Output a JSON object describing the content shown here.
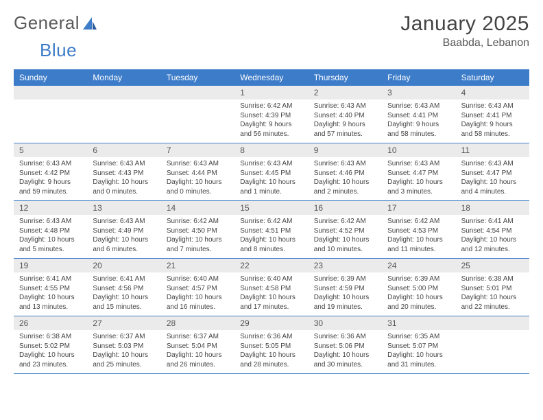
{
  "logo": {
    "text1": "General",
    "text2": "Blue"
  },
  "title": "January 2025",
  "location": "Baabda, Lebanon",
  "weekdays": [
    "Sunday",
    "Monday",
    "Tuesday",
    "Wednesday",
    "Thursday",
    "Friday",
    "Saturday"
  ],
  "colors": {
    "header_bar": "#3d7cc9",
    "daynum_bg": "#ebebeb",
    "text": "#444444",
    "logo_blue": "#3d7cc9"
  },
  "layout": {
    "columns": 7,
    "rows": 5,
    "cell_font_size": 10,
    "weekday_font_size": 12
  },
  "weeks": [
    [
      {
        "n": "",
        "sunrise": "",
        "sunset": "",
        "daylight": ""
      },
      {
        "n": "",
        "sunrise": "",
        "sunset": "",
        "daylight": ""
      },
      {
        "n": "",
        "sunrise": "",
        "sunset": "",
        "daylight": ""
      },
      {
        "n": "1",
        "sunrise": "Sunrise: 6:42 AM",
        "sunset": "Sunset: 4:39 PM",
        "daylight": "Daylight: 9 hours and 56 minutes."
      },
      {
        "n": "2",
        "sunrise": "Sunrise: 6:43 AM",
        "sunset": "Sunset: 4:40 PM",
        "daylight": "Daylight: 9 hours and 57 minutes."
      },
      {
        "n": "3",
        "sunrise": "Sunrise: 6:43 AM",
        "sunset": "Sunset: 4:41 PM",
        "daylight": "Daylight: 9 hours and 58 minutes."
      },
      {
        "n": "4",
        "sunrise": "Sunrise: 6:43 AM",
        "sunset": "Sunset: 4:41 PM",
        "daylight": "Daylight: 9 hours and 58 minutes."
      }
    ],
    [
      {
        "n": "5",
        "sunrise": "Sunrise: 6:43 AM",
        "sunset": "Sunset: 4:42 PM",
        "daylight": "Daylight: 9 hours and 59 minutes."
      },
      {
        "n": "6",
        "sunrise": "Sunrise: 6:43 AM",
        "sunset": "Sunset: 4:43 PM",
        "daylight": "Daylight: 10 hours and 0 minutes."
      },
      {
        "n": "7",
        "sunrise": "Sunrise: 6:43 AM",
        "sunset": "Sunset: 4:44 PM",
        "daylight": "Daylight: 10 hours and 0 minutes."
      },
      {
        "n": "8",
        "sunrise": "Sunrise: 6:43 AM",
        "sunset": "Sunset: 4:45 PM",
        "daylight": "Daylight: 10 hours and 1 minute."
      },
      {
        "n": "9",
        "sunrise": "Sunrise: 6:43 AM",
        "sunset": "Sunset: 4:46 PM",
        "daylight": "Daylight: 10 hours and 2 minutes."
      },
      {
        "n": "10",
        "sunrise": "Sunrise: 6:43 AM",
        "sunset": "Sunset: 4:47 PM",
        "daylight": "Daylight: 10 hours and 3 minutes."
      },
      {
        "n": "11",
        "sunrise": "Sunrise: 6:43 AM",
        "sunset": "Sunset: 4:47 PM",
        "daylight": "Daylight: 10 hours and 4 minutes."
      }
    ],
    [
      {
        "n": "12",
        "sunrise": "Sunrise: 6:43 AM",
        "sunset": "Sunset: 4:48 PM",
        "daylight": "Daylight: 10 hours and 5 minutes."
      },
      {
        "n": "13",
        "sunrise": "Sunrise: 6:43 AM",
        "sunset": "Sunset: 4:49 PM",
        "daylight": "Daylight: 10 hours and 6 minutes."
      },
      {
        "n": "14",
        "sunrise": "Sunrise: 6:42 AM",
        "sunset": "Sunset: 4:50 PM",
        "daylight": "Daylight: 10 hours and 7 minutes."
      },
      {
        "n": "15",
        "sunrise": "Sunrise: 6:42 AM",
        "sunset": "Sunset: 4:51 PM",
        "daylight": "Daylight: 10 hours and 8 minutes."
      },
      {
        "n": "16",
        "sunrise": "Sunrise: 6:42 AM",
        "sunset": "Sunset: 4:52 PM",
        "daylight": "Daylight: 10 hours and 10 minutes."
      },
      {
        "n": "17",
        "sunrise": "Sunrise: 6:42 AM",
        "sunset": "Sunset: 4:53 PM",
        "daylight": "Daylight: 10 hours and 11 minutes."
      },
      {
        "n": "18",
        "sunrise": "Sunrise: 6:41 AM",
        "sunset": "Sunset: 4:54 PM",
        "daylight": "Daylight: 10 hours and 12 minutes."
      }
    ],
    [
      {
        "n": "19",
        "sunrise": "Sunrise: 6:41 AM",
        "sunset": "Sunset: 4:55 PM",
        "daylight": "Daylight: 10 hours and 13 minutes."
      },
      {
        "n": "20",
        "sunrise": "Sunrise: 6:41 AM",
        "sunset": "Sunset: 4:56 PM",
        "daylight": "Daylight: 10 hours and 15 minutes."
      },
      {
        "n": "21",
        "sunrise": "Sunrise: 6:40 AM",
        "sunset": "Sunset: 4:57 PM",
        "daylight": "Daylight: 10 hours and 16 minutes."
      },
      {
        "n": "22",
        "sunrise": "Sunrise: 6:40 AM",
        "sunset": "Sunset: 4:58 PM",
        "daylight": "Daylight: 10 hours and 17 minutes."
      },
      {
        "n": "23",
        "sunrise": "Sunrise: 6:39 AM",
        "sunset": "Sunset: 4:59 PM",
        "daylight": "Daylight: 10 hours and 19 minutes."
      },
      {
        "n": "24",
        "sunrise": "Sunrise: 6:39 AM",
        "sunset": "Sunset: 5:00 PM",
        "daylight": "Daylight: 10 hours and 20 minutes."
      },
      {
        "n": "25",
        "sunrise": "Sunrise: 6:38 AM",
        "sunset": "Sunset: 5:01 PM",
        "daylight": "Daylight: 10 hours and 22 minutes."
      }
    ],
    [
      {
        "n": "26",
        "sunrise": "Sunrise: 6:38 AM",
        "sunset": "Sunset: 5:02 PM",
        "daylight": "Daylight: 10 hours and 23 minutes."
      },
      {
        "n": "27",
        "sunrise": "Sunrise: 6:37 AM",
        "sunset": "Sunset: 5:03 PM",
        "daylight": "Daylight: 10 hours and 25 minutes."
      },
      {
        "n": "28",
        "sunrise": "Sunrise: 6:37 AM",
        "sunset": "Sunset: 5:04 PM",
        "daylight": "Daylight: 10 hours and 26 minutes."
      },
      {
        "n": "29",
        "sunrise": "Sunrise: 6:36 AM",
        "sunset": "Sunset: 5:05 PM",
        "daylight": "Daylight: 10 hours and 28 minutes."
      },
      {
        "n": "30",
        "sunrise": "Sunrise: 6:36 AM",
        "sunset": "Sunset: 5:06 PM",
        "daylight": "Daylight: 10 hours and 30 minutes."
      },
      {
        "n": "31",
        "sunrise": "Sunrise: 6:35 AM",
        "sunset": "Sunset: 5:07 PM",
        "daylight": "Daylight: 10 hours and 31 minutes."
      },
      {
        "n": "",
        "sunrise": "",
        "sunset": "",
        "daylight": ""
      }
    ]
  ]
}
